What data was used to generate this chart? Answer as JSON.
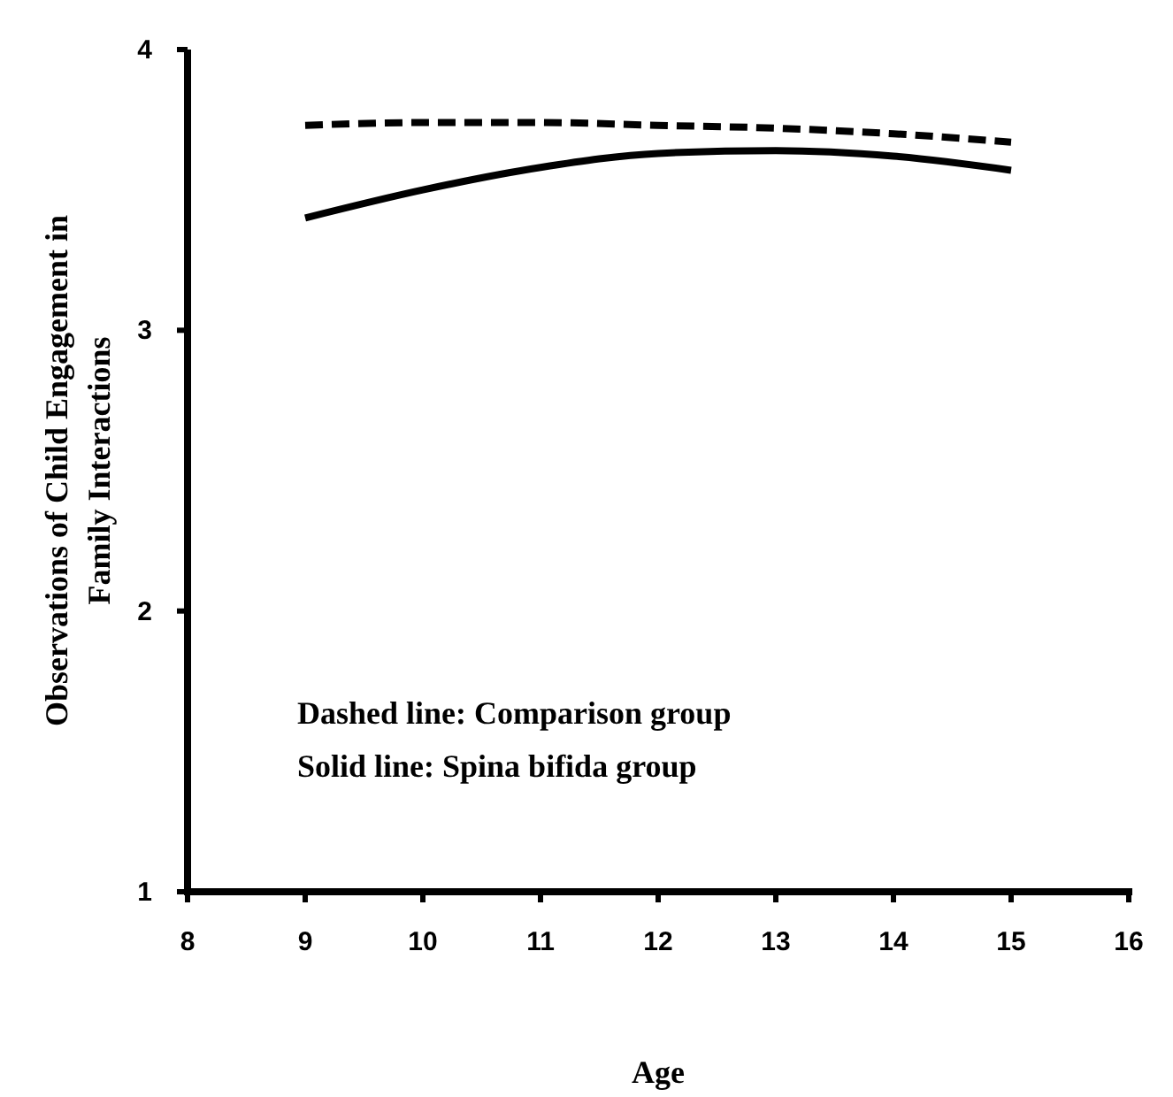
{
  "chart_data": {
    "type": "line",
    "xlabel": "Age",
    "ylabel": "Observations of Child Engagement in Family Interactions",
    "x": [
      9,
      10,
      11,
      12,
      13,
      14,
      15
    ],
    "series": [
      {
        "color": "#000000",
        "line_style": "dashed",
        "values": [
          3.73,
          3.74,
          3.74,
          3.73,
          3.72,
          3.7,
          3.67
        ]
      },
      {
        "color": "#000000",
        "line_style": "solid",
        "values": [
          3.4,
          3.5,
          3.58,
          3.63,
          3.64,
          3.62,
          3.57
        ]
      }
    ],
    "xlim": [
      8,
      16
    ],
    "xticks": [
      8,
      9,
      10,
      11,
      12,
      13,
      14,
      15,
      16
    ],
    "ylim": [
      1,
      4
    ],
    "yticks": [
      1,
      2,
      3,
      4
    ],
    "annotations": [
      "Dashed line: Comparison group",
      "Solid line: Spina bifida group"
    ],
    "grid": false,
    "marker": "none"
  }
}
